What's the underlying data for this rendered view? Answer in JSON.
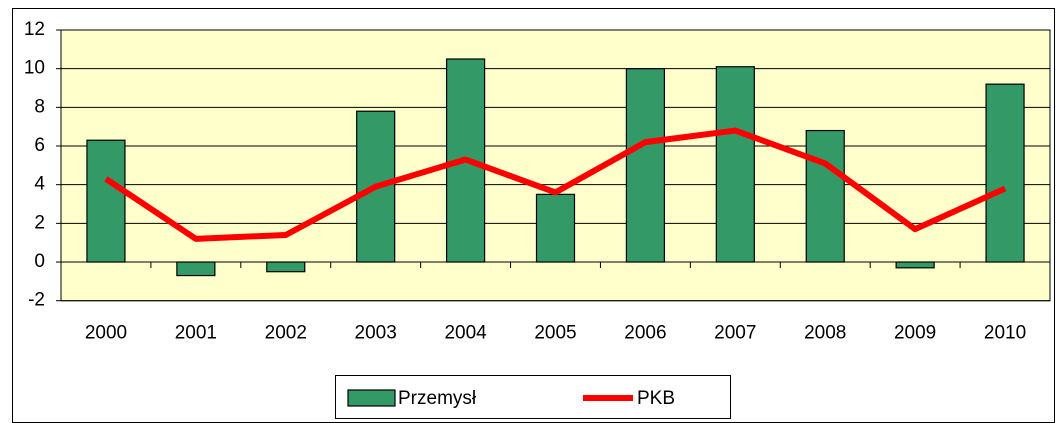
{
  "chart_data": {
    "type": "combo",
    "categories": [
      "2000",
      "2001",
      "2002",
      "2003",
      "2004",
      "2005",
      "2006",
      "2007",
      "2008",
      "2009",
      "2010"
    ],
    "series": [
      {
        "name": "Przemysł",
        "type": "bar",
        "color": "#339966",
        "values": [
          6.3,
          -0.7,
          -0.5,
          7.8,
          10.5,
          3.5,
          10.0,
          10.1,
          6.8,
          -0.3,
          9.2
        ]
      },
      {
        "name": "PKB",
        "type": "line",
        "color": "#ff0000",
        "values": [
          4.3,
          1.2,
          1.4,
          3.9,
          5.3,
          3.6,
          6.2,
          6.8,
          5.1,
          1.7,
          3.8
        ]
      }
    ],
    "ylim": [
      -2,
      12
    ],
    "yticks": [
      -2,
      0,
      2,
      4,
      6,
      8,
      10,
      12
    ],
    "grid": true,
    "legend": "bottom",
    "plot_background": "#ffffcc"
  }
}
